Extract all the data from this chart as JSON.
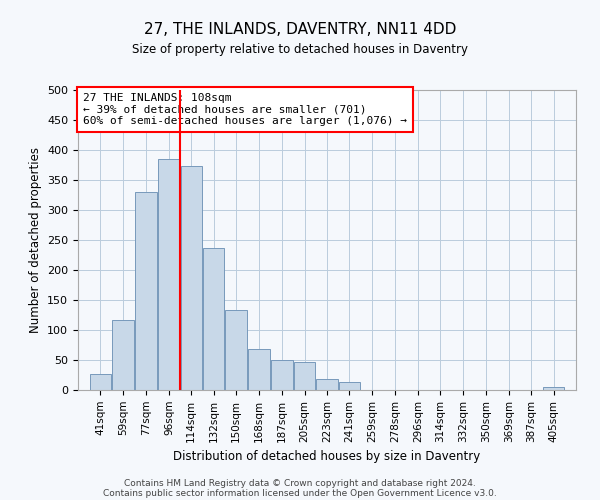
{
  "title": "27, THE INLANDS, DAVENTRY, NN11 4DD",
  "subtitle": "Size of property relative to detached houses in Daventry",
  "xlabel": "Distribution of detached houses by size in Daventry",
  "ylabel": "Number of detached properties",
  "bar_color": "#c8d8e8",
  "bar_edge_color": "#7799bb",
  "grid_color": "#bbccdd",
  "background_color": "#f5f8fc",
  "vline_x": 114,
  "vline_color": "red",
  "annotation_text": "27 THE INLANDS: 108sqm\n← 39% of detached houses are smaller (701)\n60% of semi-detached houses are larger (1,076) →",
  "annotation_box_color": "white",
  "annotation_box_edge": "red",
  "footer_line1": "Contains HM Land Registry data © Crown copyright and database right 2024.",
  "footer_line2": "Contains public sector information licensed under the Open Government Licence v3.0.",
  "categories": [
    "41sqm",
    "59sqm",
    "77sqm",
    "96sqm",
    "114sqm",
    "132sqm",
    "150sqm",
    "168sqm",
    "187sqm",
    "205sqm",
    "223sqm",
    "241sqm",
    "259sqm",
    "278sqm",
    "296sqm",
    "314sqm",
    "332sqm",
    "350sqm",
    "369sqm",
    "387sqm",
    "405sqm"
  ],
  "bar_lefts": [
    41,
    59,
    77,
    96,
    114,
    132,
    150,
    168,
    187,
    205,
    223,
    241,
    259,
    278,
    296,
    314,
    332,
    350,
    369,
    387,
    405
  ],
  "bar_widths": [
    18,
    18,
    19,
    18,
    18,
    18,
    18,
    19,
    18,
    18,
    18,
    18,
    19,
    18,
    18,
    18,
    18,
    19,
    18,
    18,
    18
  ],
  "bar_heights": [
    27,
    117,
    330,
    385,
    373,
    237,
    133,
    68,
    50,
    46,
    18,
    13,
    0,
    0,
    0,
    0,
    0,
    0,
    0,
    0,
    5
  ],
  "ylim": [
    0,
    500
  ],
  "yticks": [
    0,
    50,
    100,
    150,
    200,
    250,
    300,
    350,
    400,
    450,
    500
  ],
  "xlim": [
    32,
    432
  ]
}
